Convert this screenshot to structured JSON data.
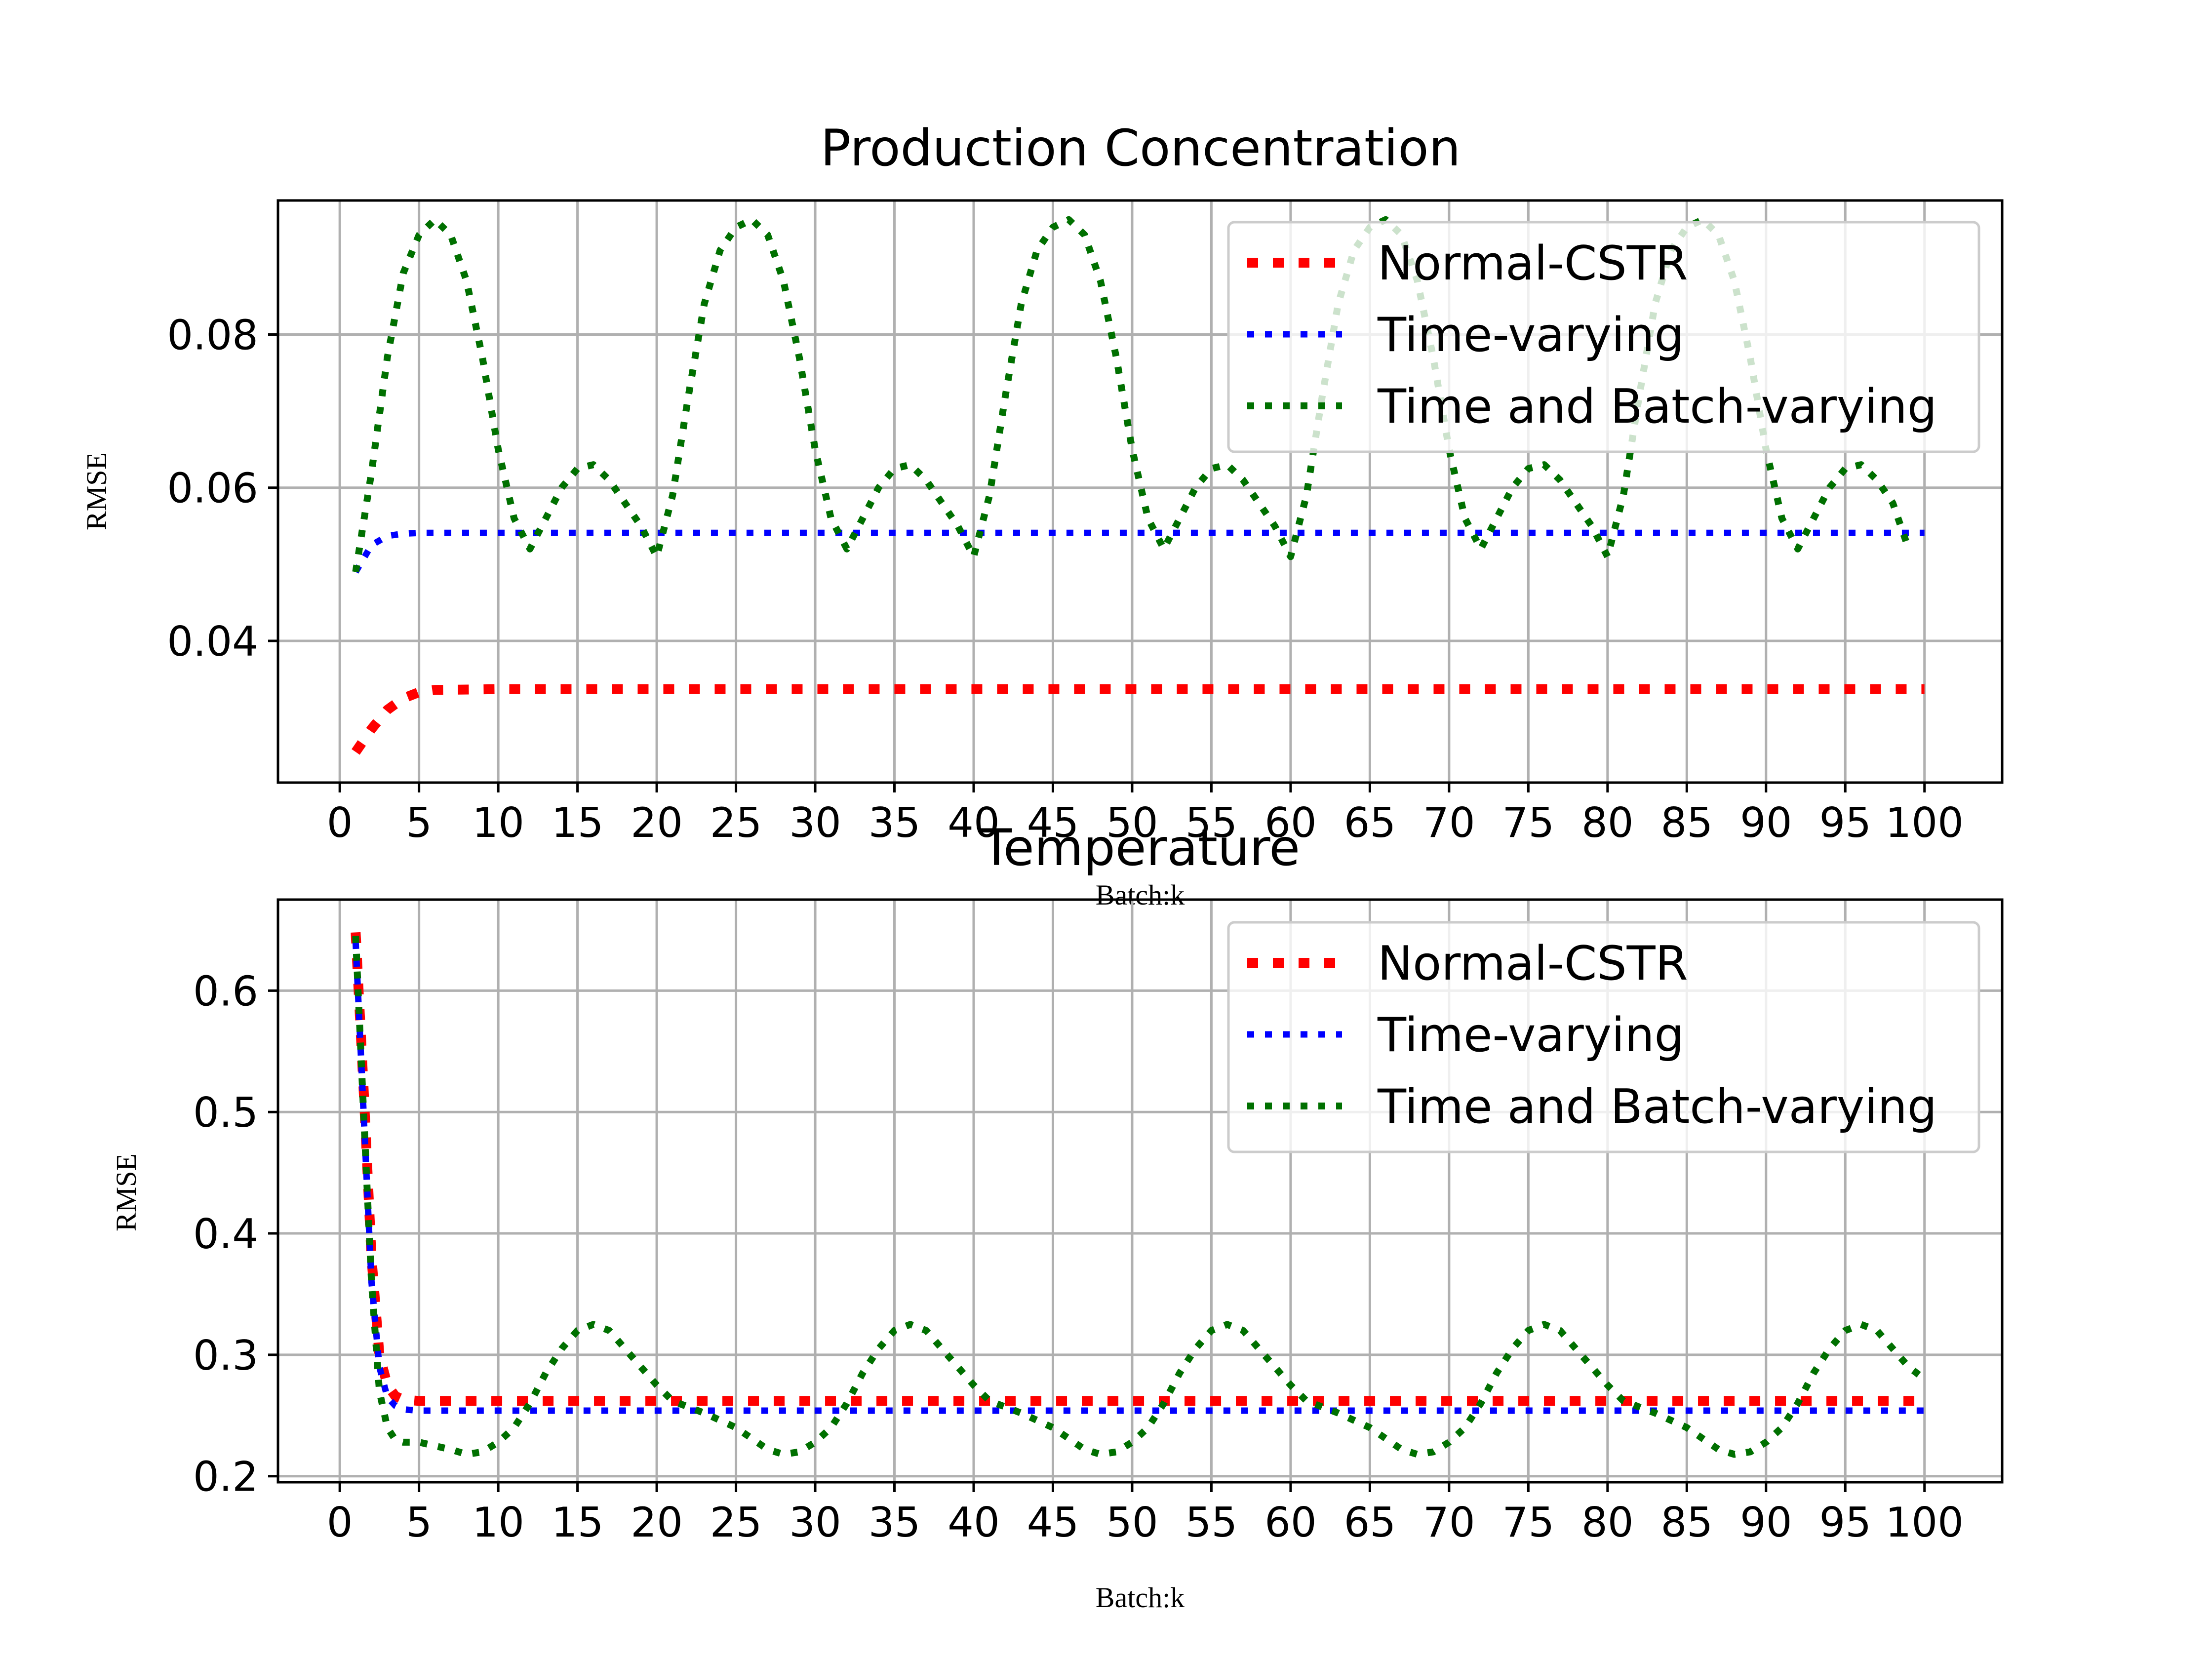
{
  "chart_data": [
    {
      "type": "line",
      "title": "Production Concentration",
      "xlabel": "Batch:k",
      "ylabel": "RMSE",
      "xlim": [
        -3.9,
        104.9
      ],
      "ylim": [
        0.0215,
        0.0975
      ],
      "xticks": [
        0,
        5,
        10,
        15,
        20,
        25,
        30,
        35,
        40,
        45,
        50,
        55,
        60,
        65,
        70,
        75,
        80,
        85,
        90,
        95,
        100
      ],
      "yticks": [
        0.04,
        0.06,
        0.08
      ],
      "ytick_labels": [
        "0.04",
        "0.06",
        "0.08"
      ],
      "grid": true,
      "legend_position": "upper right",
      "series": [
        {
          "name": "Normal-CSTR",
          "color": "#ff0000",
          "style": "dotted",
          "x": [
            1,
            2,
            3,
            4,
            5,
            6,
            10,
            20,
            30,
            40,
            50,
            60,
            70,
            80,
            90,
            100
          ],
          "y": [
            0.0255,
            0.0285,
            0.031,
            0.0325,
            0.0333,
            0.0336,
            0.0337,
            0.0337,
            0.0337,
            0.0337,
            0.0337,
            0.0337,
            0.0337,
            0.0337,
            0.0337,
            0.0337
          ]
        },
        {
          "name": "Time-varying",
          "color": "#0000ff",
          "style": "dotted",
          "x": [
            1,
            2,
            3,
            4,
            5,
            10,
            20,
            30,
            40,
            50,
            60,
            70,
            80,
            90,
            100
          ],
          "y": [
            0.049,
            0.0525,
            0.0537,
            0.054,
            0.0541,
            0.0541,
            0.0541,
            0.0541,
            0.0541,
            0.0541,
            0.0541,
            0.0541,
            0.0541,
            0.0541,
            0.0541
          ]
        },
        {
          "name": "Time and Batch-varying",
          "color": "#007000",
          "style": "dotted",
          "x": [
            1,
            2,
            3,
            4,
            5,
            6,
            7,
            8,
            9,
            10,
            11,
            12,
            13,
            14,
            15,
            16,
            17,
            18,
            19,
            20,
            21,
            22,
            23,
            24,
            25,
            26,
            27,
            28,
            29,
            30,
            31,
            32,
            33,
            34,
            35,
            36,
            37,
            38,
            39,
            40,
            41,
            42,
            43,
            44,
            45,
            46,
            47,
            48,
            49,
            50,
            51,
            52,
            53,
            54,
            55,
            56,
            57,
            58,
            59,
            60,
            61,
            62,
            63,
            64,
            65,
            66,
            67,
            68,
            69,
            70,
            71,
            72,
            73,
            74,
            75,
            76,
            77,
            78,
            79,
            80,
            81,
            82,
            83,
            84,
            85,
            86,
            87,
            88,
            89,
            90,
            91,
            92,
            93,
            94,
            95,
            96,
            97,
            98,
            99
          ],
          "y": [
            0.049,
            0.062,
            0.077,
            0.088,
            0.093,
            0.095,
            0.093,
            0.087,
            0.077,
            0.065,
            0.056,
            0.052,
            0.056,
            0.06,
            0.0625,
            0.063,
            0.061,
            0.058,
            0.055,
            0.051,
            0.059,
            0.072,
            0.084,
            0.091,
            0.094,
            0.095,
            0.093,
            0.087,
            0.077,
            0.065,
            0.056,
            0.052,
            0.056,
            0.06,
            0.0625,
            0.063,
            0.061,
            0.058,
            0.055,
            0.051,
            0.059,
            0.072,
            0.084,
            0.091,
            0.094,
            0.095,
            0.093,
            0.087,
            0.077,
            0.065,
            0.056,
            0.052,
            0.056,
            0.06,
            0.0625,
            0.063,
            0.061,
            0.058,
            0.055,
            0.051,
            0.059,
            0.072,
            0.084,
            0.091,
            0.094,
            0.095,
            0.093,
            0.087,
            0.077,
            0.065,
            0.056,
            0.052,
            0.056,
            0.06,
            0.0625,
            0.063,
            0.061,
            0.058,
            0.055,
            0.051,
            0.059,
            0.072,
            0.084,
            0.091,
            0.094,
            0.095,
            0.093,
            0.087,
            0.077,
            0.065,
            0.056,
            0.052,
            0.056,
            0.06,
            0.0625,
            0.063,
            0.061,
            0.058,
            0.052
          ]
        }
      ]
    },
    {
      "type": "line",
      "title": "Temperature",
      "xlabel": "Batch:k",
      "ylabel": "RMSE",
      "xlim": [
        -3.9,
        104.9
      ],
      "ylim": [
        0.195,
        0.675
      ],
      "xticks": [
        0,
        5,
        10,
        15,
        20,
        25,
        30,
        35,
        40,
        45,
        50,
        55,
        60,
        65,
        70,
        75,
        80,
        85,
        90,
        95,
        100
      ],
      "yticks": [
        0.2,
        0.3,
        0.4,
        0.5,
        0.6
      ],
      "ytick_labels": [
        "0.2",
        "0.3",
        "0.4",
        "0.5",
        "0.6"
      ],
      "grid": true,
      "legend_position": "upper right",
      "series": [
        {
          "name": "Normal-CSTR",
          "color": "#ff0000",
          "style": "dotted",
          "x": [
            1,
            1.5,
            2,
            2.5,
            3,
            3.5,
            4,
            5,
            10,
            20,
            30,
            40,
            50,
            60,
            70,
            80,
            90,
            100
          ],
          "y": [
            0.648,
            0.52,
            0.38,
            0.3,
            0.275,
            0.266,
            0.263,
            0.262,
            0.262,
            0.262,
            0.262,
            0.262,
            0.262,
            0.262,
            0.262,
            0.262,
            0.262,
            0.262
          ]
        },
        {
          "name": "Time-varying",
          "color": "#0000ff",
          "style": "dotted",
          "x": [
            1,
            1.5,
            2,
            2.5,
            3,
            3.5,
            4,
            5,
            10,
            20,
            30,
            40,
            50,
            60,
            70,
            80,
            90,
            100
          ],
          "y": [
            0.64,
            0.5,
            0.36,
            0.29,
            0.265,
            0.258,
            0.255,
            0.254,
            0.254,
            0.254,
            0.254,
            0.254,
            0.254,
            0.254,
            0.254,
            0.254,
            0.254,
            0.254
          ]
        },
        {
          "name": "Time and Batch-varying",
          "color": "#007000",
          "style": "dotted",
          "x": [
            1,
            1.5,
            2,
            2.5,
            3,
            3.5,
            4,
            5,
            6,
            7,
            8,
            9,
            10,
            11,
            12,
            13,
            14,
            15,
            16,
            17,
            18,
            19,
            20,
            21,
            22,
            23,
            24,
            25,
            26,
            27,
            28,
            29,
            30,
            31,
            32,
            33,
            34,
            35,
            36,
            37,
            38,
            39,
            40,
            41,
            42,
            43,
            44,
            45,
            46,
            47,
            48,
            49,
            50,
            51,
            52,
            53,
            54,
            55,
            56,
            57,
            58,
            59,
            60,
            61,
            62,
            63,
            64,
            65,
            66,
            67,
            68,
            69,
            70,
            71,
            72,
            73,
            74,
            75,
            76,
            77,
            78,
            79,
            80,
            81,
            82,
            83,
            84,
            85,
            86,
            87,
            88,
            89,
            90,
            91,
            92,
            93,
            94,
            95,
            96,
            97,
            98,
            99,
            100
          ],
          "y": [
            0.645,
            0.5,
            0.36,
            0.27,
            0.24,
            0.23,
            0.228,
            0.228,
            0.225,
            0.222,
            0.218,
            0.22,
            0.228,
            0.24,
            0.26,
            0.285,
            0.305,
            0.32,
            0.325,
            0.32,
            0.305,
            0.29,
            0.275,
            0.262,
            0.257,
            0.252,
            0.246,
            0.24,
            0.231,
            0.222,
            0.218,
            0.22,
            0.228,
            0.24,
            0.26,
            0.285,
            0.305,
            0.32,
            0.325,
            0.32,
            0.305,
            0.29,
            0.275,
            0.262,
            0.257,
            0.252,
            0.246,
            0.24,
            0.231,
            0.222,
            0.218,
            0.22,
            0.228,
            0.24,
            0.26,
            0.285,
            0.305,
            0.32,
            0.325,
            0.32,
            0.305,
            0.29,
            0.275,
            0.262,
            0.257,
            0.252,
            0.246,
            0.24,
            0.231,
            0.222,
            0.218,
            0.22,
            0.228,
            0.24,
            0.26,
            0.285,
            0.305,
            0.32,
            0.325,
            0.32,
            0.305,
            0.29,
            0.275,
            0.262,
            0.257,
            0.252,
            0.246,
            0.24,
            0.231,
            0.222,
            0.218,
            0.22,
            0.228,
            0.24,
            0.26,
            0.285,
            0.305,
            0.32,
            0.325,
            0.32,
            0.305,
            0.29,
            0.28
          ]
        }
      ]
    }
  ]
}
